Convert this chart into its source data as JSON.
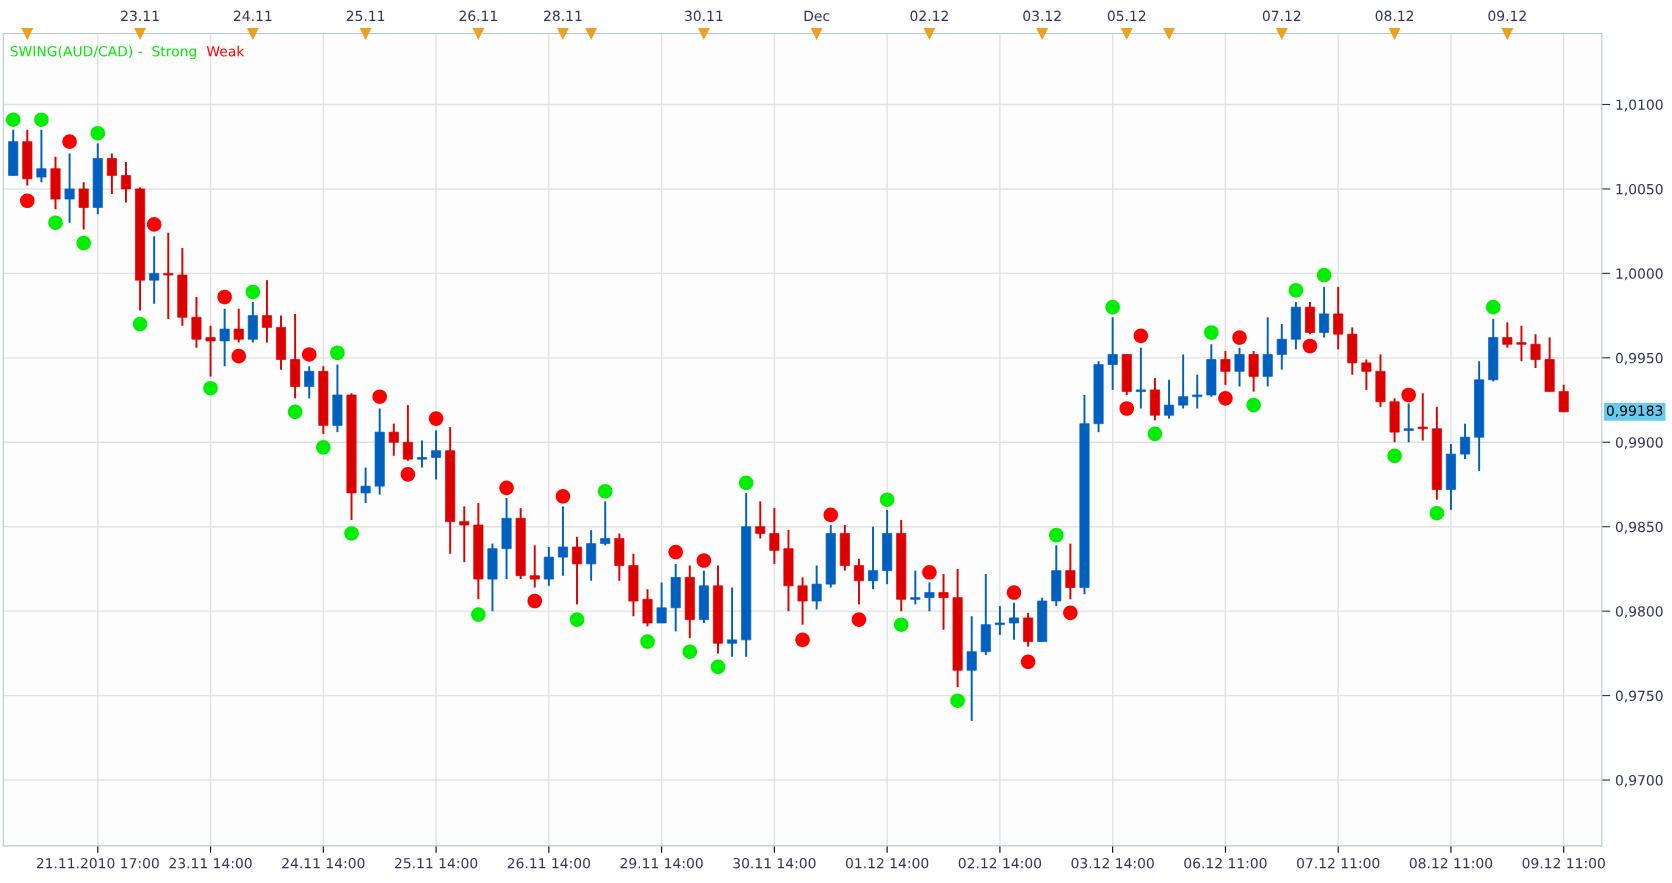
{
  "chart_data": {
    "type": "candlestick",
    "categories": [
      null,
      null,
      null,
      null,
      null,
      null,
      "21.11.2010 17:00",
      null,
      null,
      null,
      null,
      null,
      null,
      null,
      "23.11 14:00",
      null,
      null,
      null,
      null,
      null,
      null,
      null,
      "24.11 14:00",
      null,
      null,
      null,
      null,
      null,
      null,
      null,
      "25.11 14:00",
      null,
      null,
      null,
      null,
      null,
      null,
      null,
      "26.11 14:00",
      null,
      null,
      null,
      null,
      null,
      null,
      null,
      "29.11 14:00",
      null,
      null,
      null,
      null,
      null,
      null,
      null,
      "30.11 14:00",
      null,
      null,
      null,
      null,
      null,
      null,
      null,
      "01.12 14:00",
      null,
      null,
      null,
      null,
      null,
      null,
      null,
      "02.12 14:00",
      null,
      null,
      null,
      null,
      null,
      null,
      null,
      "03.12 14:00",
      null,
      null,
      null,
      null,
      null,
      null,
      null,
      "06.12 11:00",
      null,
      null,
      null,
      null,
      null,
      null,
      null,
      "07.12 11:00",
      null,
      null,
      null,
      null,
      null,
      null,
      null,
      "08.12 11:00",
      null,
      null,
      null,
      null,
      null,
      null,
      null,
      "09.12 11:00"
    ],
    "ohlc": [
      [
        1.0058,
        1.0085,
        1.0058,
        1.0078
      ],
      [
        1.0078,
        1.0085,
        1.0052,
        1.0056
      ],
      [
        1.0057,
        1.0085,
        1.0054,
        1.0062
      ],
      [
        1.0062,
        1.0069,
        1.0038,
        1.0044
      ],
      [
        1.0044,
        1.0071,
        1.003,
        1.005
      ],
      [
        1.005,
        1.0054,
        1.0026,
        1.0039
      ],
      [
        1.0039,
        1.0077,
        1.0035,
        1.0068
      ],
      [
        1.0068,
        1.0071,
        1.0047,
        1.0058
      ],
      [
        1.0058,
        1.0066,
        1.0042,
        1.005
      ],
      [
        1.005,
        1.0051,
        0.9978,
        0.9996
      ],
      [
        0.9996,
        1.0022,
        0.9982,
        1.0
      ],
      [
        1.0,
        1.0024,
        0.9973,
        0.9999
      ],
      [
        0.9999,
        1.0015,
        0.9969,
        0.9974
      ],
      [
        0.9974,
        0.9986,
        0.9956,
        0.9961
      ],
      [
        0.9962,
        0.9969,
        0.9939,
        0.996
      ],
      [
        0.996,
        0.9979,
        0.9945,
        0.9967
      ],
      [
        0.9967,
        0.9979,
        0.9959,
        0.9961
      ],
      [
        0.9961,
        0.9983,
        0.9959,
        0.9975
      ],
      [
        0.9975,
        0.9996,
        0.9959,
        0.9968
      ],
      [
        0.9968,
        0.9975,
        0.9943,
        0.9949
      ],
      [
        0.9949,
        0.9976,
        0.9926,
        0.9933
      ],
      [
        0.9933,
        0.9945,
        0.9926,
        0.9942
      ],
      [
        0.9942,
        0.9945,
        0.9905,
        0.991
      ],
      [
        0.991,
        0.9946,
        0.9906,
        0.9928
      ],
      [
        0.9928,
        0.9929,
        0.9854,
        0.987
      ],
      [
        0.987,
        0.9885,
        0.9864,
        0.9874
      ],
      [
        0.9874,
        0.992,
        0.9869,
        0.9906
      ],
      [
        0.9906,
        0.9911,
        0.9892,
        0.99
      ],
      [
        0.99,
        0.9922,
        0.9889,
        0.989
      ],
      [
        0.989,
        0.9901,
        0.9885,
        0.9891
      ],
      [
        0.9891,
        0.9907,
        0.9878,
        0.9895
      ],
      [
        0.9895,
        0.9909,
        0.9834,
        0.9853
      ],
      [
        0.9853,
        0.9862,
        0.9829,
        0.9851
      ],
      [
        0.9851,
        0.9864,
        0.9807,
        0.9819
      ],
      [
        0.9819,
        0.984,
        0.98,
        0.9837
      ],
      [
        0.9837,
        0.9867,
        0.9819,
        0.9855
      ],
      [
        0.9855,
        0.9861,
        0.9819,
        0.9821
      ],
      [
        0.9821,
        0.9839,
        0.9814,
        0.9819
      ],
      [
        0.9819,
        0.9838,
        0.9815,
        0.9832
      ],
      [
        0.9832,
        0.9862,
        0.9821,
        0.9838
      ],
      [
        0.9838,
        0.9844,
        0.9804,
        0.9828
      ],
      [
        0.9828,
        0.9848,
        0.9818,
        0.984
      ],
      [
        0.984,
        0.9865,
        0.9839,
        0.9843
      ],
      [
        0.9843,
        0.9846,
        0.9818,
        0.9827
      ],
      [
        0.9827,
        0.9834,
        0.9797,
        0.9806
      ],
      [
        0.9807,
        0.9813,
        0.9791,
        0.9793
      ],
      [
        0.9793,
        0.9817,
        0.9793,
        0.9802
      ],
      [
        0.9802,
        0.9828,
        0.9788,
        0.982
      ],
      [
        0.982,
        0.9827,
        0.9784,
        0.9795
      ],
      [
        0.9795,
        0.9824,
        0.9793,
        0.9815
      ],
      [
        0.9815,
        0.9827,
        0.9775,
        0.9781
      ],
      [
        0.9781,
        0.9814,
        0.9773,
        0.9783
      ],
      [
        0.9783,
        0.987,
        0.9773,
        0.985
      ],
      [
        0.985,
        0.9865,
        0.9843,
        0.9846
      ],
      [
        0.9846,
        0.9861,
        0.9828,
        0.9836
      ],
      [
        0.9837,
        0.9848,
        0.98,
        0.9815
      ],
      [
        0.9815,
        0.982,
        0.9792,
        0.9806
      ],
      [
        0.9806,
        0.9827,
        0.9801,
        0.9816
      ],
      [
        0.9816,
        0.9851,
        0.9814,
        0.9846
      ],
      [
        0.9846,
        0.9851,
        0.9824,
        0.9827
      ],
      [
        0.9827,
        0.9831,
        0.9804,
        0.9818
      ],
      [
        0.9818,
        0.985,
        0.9813,
        0.9824
      ],
      [
        0.9824,
        0.986,
        0.9816,
        0.9846
      ],
      [
        0.9846,
        0.9854,
        0.98,
        0.9807
      ],
      [
        0.9807,
        0.9824,
        0.9804,
        0.9808
      ],
      [
        0.9808,
        0.9817,
        0.98,
        0.9811
      ],
      [
        0.9811,
        0.9822,
        0.9789,
        0.9808
      ],
      [
        0.9808,
        0.9825,
        0.9755,
        0.9765
      ],
      [
        0.9765,
        0.9797,
        0.9735,
        0.9776
      ],
      [
        0.9776,
        0.9822,
        0.9774,
        0.9792
      ],
      [
        0.9792,
        0.9803,
        0.9786,
        0.9793
      ],
      [
        0.9793,
        0.9805,
        0.9783,
        0.9796
      ],
      [
        0.9796,
        0.9799,
        0.9779,
        0.9782
      ],
      [
        0.9782,
        0.9808,
        0.9782,
        0.9806
      ],
      [
        0.9806,
        0.9839,
        0.9803,
        0.9824
      ],
      [
        0.9824,
        0.984,
        0.9807,
        0.9814
      ],
      [
        0.9814,
        0.9928,
        0.981,
        0.9911
      ],
      [
        0.9911,
        0.9948,
        0.9906,
        0.9946
      ],
      [
        0.9946,
        0.9974,
        0.9931,
        0.9952
      ],
      [
        0.9952,
        0.9952,
        0.9928,
        0.993
      ],
      [
        0.993,
        0.9956,
        0.992,
        0.9931
      ],
      [
        0.9931,
        0.9938,
        0.9913,
        0.9916
      ],
      [
        0.9916,
        0.9937,
        0.9914,
        0.9922
      ],
      [
        0.9922,
        0.9952,
        0.992,
        0.9927
      ],
      [
        0.9927,
        0.994,
        0.992,
        0.9928
      ],
      [
        0.9928,
        0.9958,
        0.9927,
        0.9949
      ],
      [
        0.9949,
        0.9954,
        0.9934,
        0.9942
      ],
      [
        0.9942,
        0.9956,
        0.9933,
        0.9952
      ],
      [
        0.9952,
        0.9954,
        0.993,
        0.9939
      ],
      [
        0.9939,
        0.9974,
        0.9933,
        0.9952
      ],
      [
        0.9952,
        0.997,
        0.9943,
        0.9961
      ],
      [
        0.9961,
        0.9983,
        0.9955,
        0.998
      ],
      [
        0.998,
        0.9983,
        0.9964,
        0.9965
      ],
      [
        0.9965,
        0.9992,
        0.9962,
        0.9976
      ],
      [
        0.9976,
        0.9992,
        0.9955,
        0.9964
      ],
      [
        0.9964,
        0.9968,
        0.994,
        0.9947
      ],
      [
        0.9947,
        0.9949,
        0.9931,
        0.9942
      ],
      [
        0.9942,
        0.9952,
        0.9921,
        0.9924
      ],
      [
        0.9924,
        0.9926,
        0.99,
        0.9906
      ],
      [
        0.9907,
        0.9923,
        0.99,
        0.9908
      ],
      [
        0.9909,
        0.9929,
        0.9901,
        0.9908
      ],
      [
        0.9908,
        0.9921,
        0.9866,
        0.9872
      ],
      [
        0.9872,
        0.9899,
        0.986,
        0.9893
      ],
      [
        0.9893,
        0.9911,
        0.989,
        0.9903
      ],
      [
        0.9903,
        0.9948,
        0.9883,
        0.9937
      ],
      [
        0.9937,
        0.9973,
        0.9936,
        0.9962
      ],
      [
        0.9962,
        0.9971,
        0.9956,
        0.9958
      ],
      [
        0.9959,
        0.9969,
        0.9948,
        0.9958
      ],
      [
        0.9958,
        0.9964,
        0.9944,
        0.9949
      ],
      [
        0.9949,
        0.9962,
        0.993,
        0.993
      ],
      [
        0.993,
        0.9934,
        0.9918,
        0.9918
      ]
    ],
    "colors": [
      "#0060c0",
      "#dd0000",
      "#0060c0",
      "#dd0000",
      "#0060c0",
      "#dd0000",
      "#0060c0",
      "#dd0000",
      "#dd0000",
      "#dd0000",
      "#0060c0",
      "#dd0000",
      "#dd0000",
      "#dd0000",
      "#dd0000",
      "#0060c0",
      "#dd0000",
      "#0060c0",
      "#dd0000",
      "#dd0000",
      "#dd0000",
      "#0060c0",
      "#dd0000",
      "#0060c0",
      "#dd0000",
      "#0060c0",
      "#0060c0",
      "#dd0000",
      "#dd0000",
      "#0060c0",
      "#0060c0",
      "#dd0000",
      "#dd0000",
      "#dd0000",
      "#0060c0",
      "#0060c0",
      "#dd0000",
      "#dd0000",
      "#0060c0",
      "#0060c0",
      "#dd0000",
      "#0060c0",
      "#0060c0",
      "#dd0000",
      "#dd0000",
      "#dd0000",
      "#0060c0",
      "#0060c0",
      "#dd0000",
      "#0060c0",
      "#dd0000",
      "#0060c0",
      "#0060c0",
      "#dd0000",
      "#dd0000",
      "#dd0000",
      "#dd0000",
      "#0060c0",
      "#0060c0",
      "#dd0000",
      "#dd0000",
      "#0060c0",
      "#0060c0",
      "#dd0000",
      "#0060c0",
      "#0060c0",
      "#dd0000",
      "#dd0000",
      "#0060c0",
      "#0060c0",
      "#0060c0",
      "#0060c0",
      "#dd0000",
      "#0060c0",
      "#0060c0",
      "#dd0000",
      "#0060c0",
      "#0060c0",
      "#0060c0",
      "#dd0000",
      "#0060c0",
      "#dd0000",
      "#0060c0",
      "#0060c0",
      "#0060c0",
      "#0060c0",
      "#dd0000",
      "#0060c0",
      "#dd0000",
      "#0060c0",
      "#0060c0",
      "#0060c0",
      "#dd0000",
      "#0060c0",
      "#dd0000",
      "#dd0000",
      "#dd0000",
      "#dd0000",
      "#dd0000",
      "#0060c0",
      "#dd0000",
      "#dd0000",
      "#0060c0",
      "#0060c0",
      "#0060c0",
      "#0060c0",
      "#dd0000",
      "#dd0000",
      "#dd0000",
      "#dd0000",
      "#dd0000"
    ],
    "series": [
      {
        "name": "Strong",
        "type": "scatter",
        "color": "#00ee00",
        "values": [
          1.0091,
          null,
          1.0091,
          1.003,
          null,
          1.0018,
          1.0083,
          null,
          null,
          0.997,
          null,
          null,
          null,
          null,
          0.9932,
          null,
          null,
          0.9989,
          null,
          null,
          0.9918,
          null,
          0.9897,
          0.9953,
          0.9846,
          null,
          null,
          null,
          null,
          null,
          null,
          null,
          null,
          0.9798,
          null,
          null,
          null,
          null,
          null,
          null,
          0.9795,
          null,
          0.9871,
          null,
          null,
          0.9782,
          null,
          null,
          0.9776,
          null,
          0.9767,
          null,
          0.9876,
          null,
          null,
          null,
          null,
          null,
          null,
          null,
          null,
          null,
          0.9866,
          0.9792,
          null,
          null,
          null,
          0.9747,
          null,
          null,
          null,
          null,
          null,
          null,
          0.9845,
          null,
          null,
          null,
          0.998,
          null,
          null,
          0.9905,
          null,
          null,
          null,
          0.9965,
          null,
          null,
          0.9922,
          null,
          null,
          0.999,
          null,
          0.9999,
          null,
          null,
          null,
          null,
          0.9892,
          null,
          null,
          0.9858,
          null,
          null,
          null,
          0.998,
          null,
          null,
          null,
          null,
          null
        ]
      },
      {
        "name": "Weak",
        "type": "scatter",
        "color": "#ff0000",
        "values": [
          null,
          1.0043,
          null,
          null,
          1.0078,
          null,
          null,
          null,
          null,
          null,
          1.0029,
          null,
          null,
          null,
          null,
          0.9986,
          0.9951,
          null,
          null,
          null,
          null,
          0.9952,
          null,
          null,
          null,
          null,
          0.9927,
          null,
          0.9881,
          null,
          0.9914,
          null,
          null,
          null,
          null,
          0.9873,
          null,
          0.9806,
          null,
          0.9868,
          null,
          null,
          null,
          null,
          null,
          null,
          null,
          0.9835,
          null,
          0.983,
          null,
          null,
          null,
          null,
          null,
          null,
          0.9783,
          null,
          0.9857,
          null,
          0.9795,
          null,
          null,
          null,
          null,
          0.9823,
          null,
          null,
          null,
          null,
          null,
          0.9811,
          0.977,
          null,
          null,
          0.9799,
          null,
          null,
          null,
          0.992,
          0.9963,
          null,
          null,
          null,
          null,
          null,
          0.9926,
          0.9962,
          null,
          null,
          null,
          null,
          0.9957,
          null,
          null,
          null,
          null,
          null,
          null,
          0.9928,
          null,
          null,
          null,
          null,
          null,
          null,
          null,
          null,
          null,
          null,
          null
        ]
      }
    ],
    "legend_title": "SWING(AUD/CAD) -",
    "legend": "top left",
    "marker": "circle",
    "ylim": [
      0.9661,
      1.0142
    ],
    "yticks": [
      {
        "value": 0.97,
        "label": "0,9700"
      },
      {
        "value": 0.975,
        "label": "0,9750"
      },
      {
        "value": 0.98,
        "label": "0,9800"
      },
      {
        "value": 0.985,
        "label": "0,9850"
      },
      {
        "value": 0.99,
        "label": "0,9900"
      },
      {
        "value": 0.995,
        "label": "0,9950"
      },
      {
        "value": 1.0,
        "label": "1,0000"
      },
      {
        "value": 1.005,
        "label": "1,0050"
      },
      {
        "value": 1.01,
        "label": "1,0100"
      }
    ],
    "annotations": [
      "23.11",
      "24.11",
      "25.11",
      "26.11",
      "28.11",
      "30.11",
      "Dec",
      "02.12",
      "03.12",
      "05.12",
      "07.12",
      "08.12",
      "09.12",
      "0,99183"
    ],
    "grid": true
  }
}
